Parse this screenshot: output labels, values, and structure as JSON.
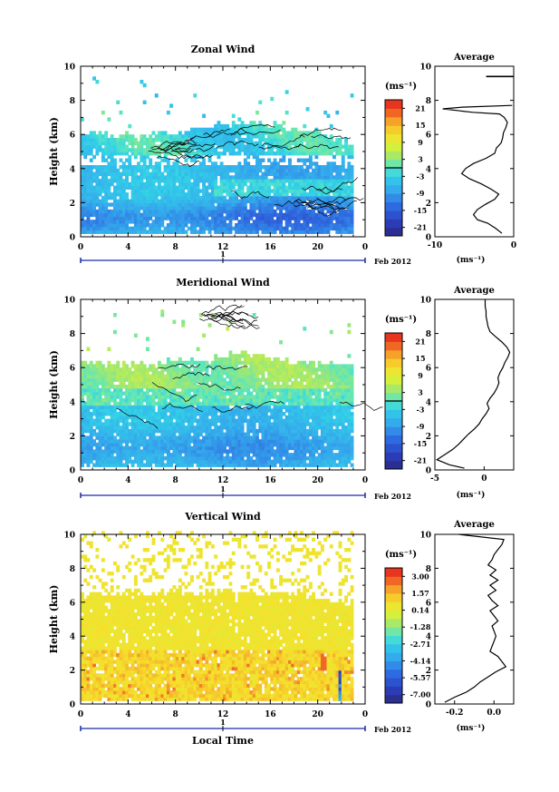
{
  "chart_data": [
    {
      "type": "heatmap",
      "title": "Zonal Wind",
      "ylabel": "Height (km)",
      "xlabel": "",
      "x_ticks": [
        "0",
        "4",
        "8",
        "12",
        "16",
        "20",
        "0"
      ],
      "y_ticks": [
        "0",
        "2",
        "4",
        "6",
        "8",
        "10"
      ],
      "xlim": [
        0,
        24
      ],
      "ylim": [
        0,
        10
      ],
      "date_marker": "1",
      "date_label": "Feb 2012",
      "colorbar": {
        "unit_label": "(ms⁻¹)",
        "ticks": [
          "21",
          "15",
          "9",
          "3",
          "-3",
          "-9",
          "-15",
          "-21"
        ],
        "range": [
          -24,
          24
        ],
        "zero_line": true
      },
      "field": {
        "description": "mostly westward (negative) wind, strongest near 1 km",
        "data_top_km": {
          "hours": [
            0,
            4,
            8,
            10,
            12,
            14,
            16,
            18,
            20,
            22,
            23
          ],
          "values": [
            6.0,
            5.9,
            6.0,
            6.4,
            6.5,
            6.6,
            6.5,
            6.2,
            5.9,
            5.6,
            5.4
          ]
        },
        "gap_band_km": [
          4.1,
          4.8
        ],
        "sparse_top_km": 9.3
      },
      "profile": {
        "title": "Average",
        "xlabel": "(ms⁻¹)",
        "x_ticks": [
          "-10",
          "0"
        ],
        "y_ticks": [
          "0",
          "2",
          "4",
          "6",
          "8",
          "10"
        ],
        "xlim": [
          -10,
          0
        ],
        "height_km": [
          0.2,
          0.5,
          0.8,
          1.0,
          1.3,
          1.6,
          1.9,
          2.2,
          2.5,
          2.8,
          3.1,
          3.4,
          3.7,
          4.0,
          4.3,
          4.6,
          4.9,
          5.2,
          5.5,
          5.8,
          6.1,
          6.4,
          6.7,
          7.0,
          7.2,
          7.3,
          7.5,
          7.6,
          7.7
        ],
        "value": [
          -1.5,
          -2.3,
          -3.3,
          -4.6,
          -5.1,
          -4.6,
          -3.6,
          -2.4,
          -1.9,
          -2.9,
          -4.1,
          -5.6,
          -6.6,
          -6.1,
          -5.1,
          -3.5,
          -2.4,
          -2.2,
          -1.6,
          -1.4,
          -1.3,
          -1.0,
          -0.8,
          -1.2,
          -1.8,
          -5.2,
          -9.0,
          -6.5,
          -0.2
        ],
        "extra_segments": [
          {
            "height_km": 9.4,
            "from": -3.5,
            "to": 0
          }
        ]
      }
    },
    {
      "type": "heatmap",
      "title": "Meridional Wind",
      "ylabel": "Height (km)",
      "xlabel": "",
      "x_ticks": [
        "0",
        "4",
        "8",
        "12",
        "16",
        "20",
        "0"
      ],
      "y_ticks": [
        "0",
        "2",
        "4",
        "6",
        "8",
        "10"
      ],
      "xlim": [
        0,
        24
      ],
      "ylim": [
        0,
        10
      ],
      "date_marker": "1",
      "date_label": "Feb 2012",
      "colorbar": {
        "unit_label": "(ms⁻¹)",
        "ticks": [
          "21",
          "15",
          "9",
          "3",
          "-3",
          "-9",
          "-15",
          "-21"
        ],
        "range": [
          -24,
          24
        ],
        "zero_line": true
      },
      "field": {
        "description": "southward (negative) below ~4 km, weak northward above",
        "data_top_km": {
          "hours": [
            0,
            4,
            8,
            10,
            12,
            14,
            16,
            18,
            20,
            22,
            23
          ],
          "values": [
            6.2,
            6.1,
            6.3,
            6.4,
            6.6,
            6.7,
            6.5,
            6.3,
            6.2,
            6.1,
            6.0
          ]
        },
        "gap_band_km": null,
        "sparse_top_km": 9.3
      },
      "profile": {
        "title": "Average",
        "xlabel": "(ms⁻¹)",
        "x_ticks": [
          "-5",
          "0"
        ],
        "y_ticks": [
          "0",
          "2",
          "4",
          "6",
          "8",
          "10"
        ],
        "xlim": [
          -5,
          3
        ],
        "height_km": [
          0.1,
          0.3,
          0.6,
          0.9,
          1.2,
          1.5,
          1.8,
          2.1,
          2.4,
          2.7,
          3.0,
          3.3,
          3.6,
          3.9,
          4.2,
          4.5,
          4.8,
          5.1,
          5.4,
          5.7,
          6.0,
          6.3,
          6.6,
          6.9,
          7.2,
          7.5,
          7.8,
          8.1,
          8.4,
          8.7,
          9.0,
          9.3,
          9.6,
          10.0
        ],
        "value": [
          -2.0,
          -3.5,
          -4.8,
          -4.0,
          -3.2,
          -2.6,
          -2.1,
          -1.6,
          -1.0,
          -0.5,
          -0.2,
          0.2,
          0.5,
          0.3,
          0.6,
          1.0,
          1.3,
          1.5,
          1.4,
          1.6,
          1.9,
          2.1,
          2.4,
          2.6,
          2.3,
          1.8,
          1.2,
          0.6,
          0.4,
          0.3,
          0.2,
          0.2,
          0.1,
          0.1
        ]
      }
    },
    {
      "type": "heatmap",
      "title": "Vertical Wind",
      "ylabel": "Height (km)",
      "xlabel": "Local Time",
      "x_ticks": [
        "0",
        "4",
        "8",
        "12",
        "16",
        "20",
        "0"
      ],
      "y_ticks": [
        "0",
        "2",
        "4",
        "6",
        "8",
        "10"
      ],
      "xlim": [
        0,
        24
      ],
      "ylim": [
        0,
        10
      ],
      "date_marker": "1",
      "date_label": "Feb 2012",
      "colorbar": {
        "unit_label": "(ms⁻¹)",
        "ticks": [
          "3.00",
          "1.57",
          "0.14",
          "-1.28",
          "-2.71",
          "-4.14",
          "-5.57",
          "-7.00"
        ],
        "range": [
          -7.7,
          3.7
        ],
        "zero_line": false
      },
      "field": {
        "description": "near-zero vertical wind, weak updrafts below 3 km",
        "data_top_km": {
          "hours": [
            0,
            4,
            8,
            10,
            12,
            14,
            16,
            18,
            20,
            22,
            23
          ],
          "values": [
            6.4,
            6.4,
            6.5,
            6.5,
            6.5,
            6.5,
            6.4,
            6.4,
            6.2,
            5.9,
            5.6
          ]
        },
        "gap_band_km": null,
        "sparse_top_km": 10.0
      },
      "profile": {
        "title": "Average",
        "xlabel": "(ms⁻¹)",
        "x_ticks": [
          "-0.2",
          "0.0"
        ],
        "y_ticks": [
          "0",
          "2",
          "4",
          "6",
          "8",
          "10"
        ],
        "xlim": [
          -0.3,
          0.1
        ],
        "height_km": [
          0.1,
          0.4,
          0.7,
          1.0,
          1.3,
          1.6,
          1.9,
          2.2,
          2.5,
          2.8,
          3.1,
          3.4,
          3.7,
          4.0,
          4.3,
          4.6,
          4.9,
          5.2,
          5.5,
          5.8,
          6.1,
          6.4,
          6.7,
          7.0,
          7.3,
          7.6,
          7.9,
          8.2,
          8.5,
          8.8,
          9.1,
          9.4,
          9.7,
          10.0
        ],
        "value": [
          -0.25,
          -0.2,
          -0.14,
          -0.1,
          -0.07,
          -0.03,
          0.01,
          0.06,
          0.04,
          0.02,
          -0.02,
          -0.01,
          0.0,
          0.01,
          0.0,
          -0.01,
          0.02,
          0.0,
          -0.02,
          0.02,
          -0.01,
          -0.03,
          0.01,
          -0.02,
          0.02,
          -0.02,
          0.01,
          -0.03,
          -0.01,
          0.0,
          0.02,
          0.04,
          0.05,
          -0.18
        ]
      }
    }
  ]
}
